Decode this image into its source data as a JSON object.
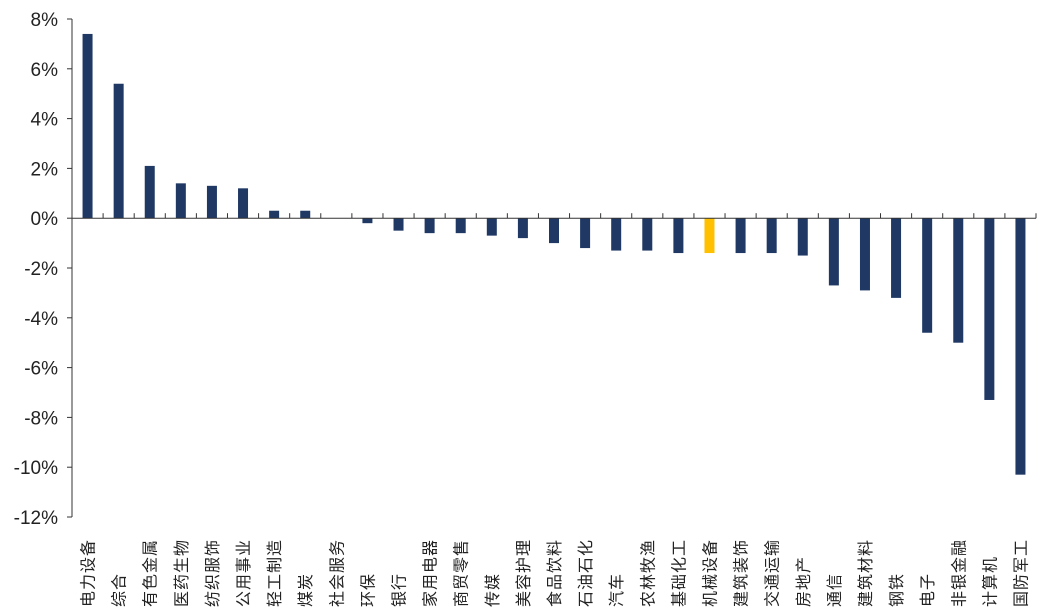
{
  "chart_data": {
    "type": "bar",
    "ylim": [
      -12,
      8
    ],
    "yticks": [
      "8%",
      "6%",
      "4%",
      "2%",
      "0%",
      "-2%",
      "-4%",
      "-6%",
      "-8%",
      "-10%",
      "-12%"
    ],
    "y_unit": "%",
    "grid": false,
    "legend": "none",
    "colors": {
      "default": "#1f3864",
      "highlight": "#ffc000"
    },
    "highlight_category": "机械设备",
    "categories": [
      "电力设备",
      "综合",
      "有色金属",
      "医药生物",
      "纺织服饰",
      "公用事业",
      "轻工制造",
      "煤炭",
      "社会服务",
      "环保",
      "银行",
      "家用电器",
      "商贸零售",
      "传媒",
      "美容护理",
      "食品饮料",
      "石油石化",
      "汽车",
      "农林牧渔",
      "基础化工",
      "机械设备",
      "建筑装饰",
      "交通运输",
      "房地产",
      "通信",
      "建筑材料",
      "钢铁",
      "电子",
      "非银金融",
      "计算机",
      "国防军工"
    ],
    "values": [
      7.4,
      5.4,
      2.1,
      1.4,
      1.3,
      1.2,
      0.3,
      0.3,
      0.0,
      -0.2,
      -0.5,
      -0.6,
      -0.6,
      -0.7,
      -0.8,
      -1.0,
      -1.2,
      -1.3,
      -1.3,
      -1.4,
      -1.4,
      -1.4,
      -1.4,
      -1.5,
      -2.7,
      -2.9,
      -3.2,
      -4.6,
      -5.0,
      -7.3,
      -10.3
    ]
  }
}
